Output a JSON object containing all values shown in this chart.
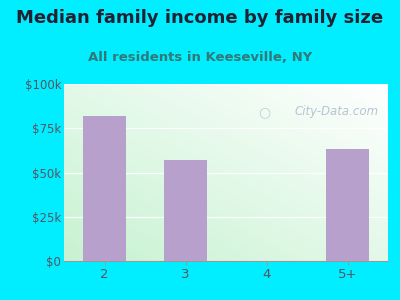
{
  "title": "Median family income by family size",
  "subtitle": "All residents in Keeseville, NY",
  "categories": [
    "2",
    "3",
    "4",
    "5+"
  ],
  "values": [
    82000,
    57000,
    0,
    63000
  ],
  "bar_color": "#b8a0cc",
  "bg_color": "#00eeff",
  "title_color": "#222233",
  "subtitle_color": "#337777",
  "tick_label_color": "#555566",
  "ytick_labels": [
    "$0",
    "$25k",
    "$50k",
    "$75k",
    "$100k"
  ],
  "ytick_values": [
    0,
    25000,
    50000,
    75000,
    100000
  ],
  "ylim": [
    0,
    100000
  ],
  "watermark": "City-Data.com",
  "watermark_color": "#aabbcc",
  "title_fontsize": 13,
  "subtitle_fontsize": 9.5
}
